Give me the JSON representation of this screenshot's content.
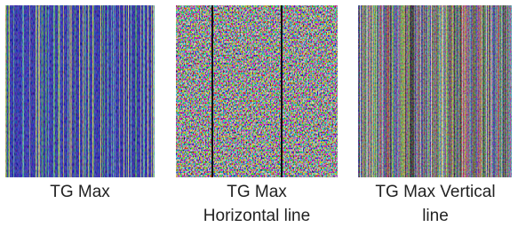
{
  "panels": [
    {
      "caption": [
        "TG Max"
      ]
    },
    {
      "caption": [
        "TG Max",
        "Horizontal line"
      ]
    },
    {
      "caption": [
        "TG Max Vertical",
        "line"
      ]
    }
  ]
}
